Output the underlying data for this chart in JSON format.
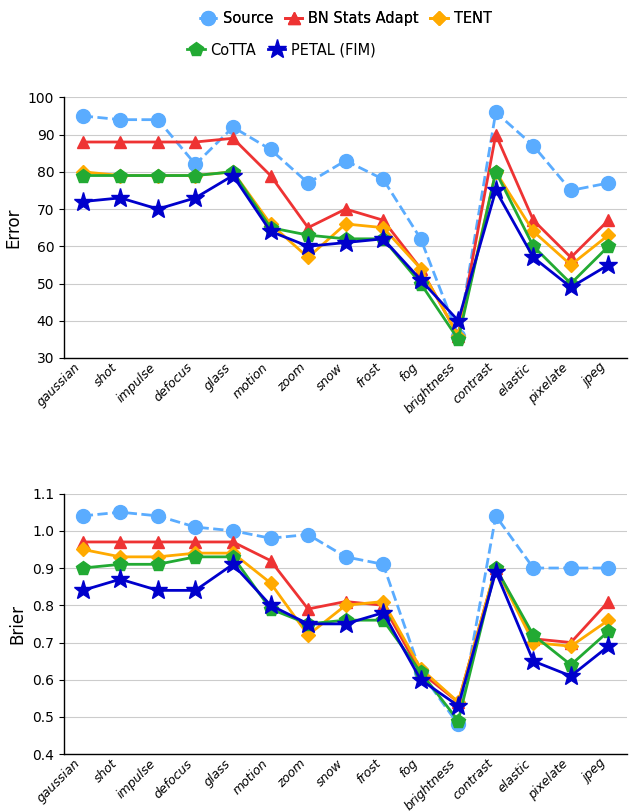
{
  "categories": [
    "gaussian",
    "shot",
    "impulse",
    "defocus",
    "glass",
    "motion",
    "zoom",
    "snow",
    "frost",
    "fog",
    "brightness",
    "contrast",
    "elastic",
    "pixelate",
    "jpeg"
  ],
  "error": {
    "Source": [
      95,
      94,
      94,
      82,
      92,
      86,
      77,
      83,
      78,
      62,
      36,
      96,
      87,
      75,
      77
    ],
    "BN Stats Adapt": [
      88,
      88,
      88,
      88,
      89,
      79,
      65,
      70,
      67,
      54,
      36,
      90,
      67,
      57,
      67
    ],
    "TENT": [
      80,
      79,
      79,
      79,
      80,
      66,
      57,
      66,
      65,
      54,
      36,
      80,
      64,
      55,
      63
    ],
    "CoTTA": [
      79,
      79,
      79,
      79,
      80,
      65,
      63,
      62,
      62,
      50,
      35,
      80,
      60,
      50,
      60
    ],
    "PETAL (FIM)": [
      72,
      73,
      70,
      73,
      79,
      64,
      60,
      61,
      62,
      51,
      40,
      75,
      57,
      49,
      55
    ]
  },
  "brier": {
    "Source": [
      1.04,
      1.05,
      1.04,
      1.01,
      1.0,
      0.98,
      0.99,
      0.93,
      0.91,
      0.62,
      0.48,
      1.04,
      0.9,
      0.9,
      0.9
    ],
    "BN Stats Adapt": [
      0.97,
      0.97,
      0.97,
      0.97,
      0.97,
      0.92,
      0.79,
      0.81,
      0.8,
      0.62,
      0.54,
      0.9,
      0.71,
      0.7,
      0.81
    ],
    "TENT": [
      0.95,
      0.93,
      0.93,
      0.94,
      0.94,
      0.86,
      0.72,
      0.8,
      0.81,
      0.63,
      0.54,
      0.9,
      0.7,
      0.69,
      0.76
    ],
    "CoTTA": [
      0.9,
      0.91,
      0.91,
      0.93,
      0.93,
      0.79,
      0.75,
      0.76,
      0.76,
      0.62,
      0.49,
      0.9,
      0.72,
      0.64,
      0.73
    ],
    "PETAL (FIM)": [
      0.84,
      0.87,
      0.84,
      0.84,
      0.91,
      0.8,
      0.75,
      0.75,
      0.78,
      0.6,
      0.53,
      0.89,
      0.65,
      0.61,
      0.69
    ]
  },
  "colors": {
    "Source": "#5aacff",
    "BN Stats Adapt": "#ee3333",
    "TENT": "#ffaa00",
    "CoTTA": "#22aa33",
    "PETAL (FIM)": "#0000cc"
  },
  "markers": {
    "Source": "o",
    "BN Stats Adapt": "^",
    "TENT": "D",
    "CoTTA": "p",
    "PETAL (FIM)": "*"
  },
  "linestyles": {
    "Source": "--",
    "BN Stats Adapt": "-",
    "TENT": "-",
    "CoTTA": "-",
    "PETAL (FIM)": "-"
  },
  "marker_sizes": {
    "Source": 10,
    "BN Stats Adapt": 9,
    "TENT": 7,
    "CoTTA": 10,
    "PETAL (FIM)": 14
  },
  "error_ylim": [
    30,
    100
  ],
  "brier_ylim": [
    0.4,
    1.1
  ],
  "error_yticks": [
    30,
    40,
    50,
    60,
    70,
    80,
    90,
    100
  ],
  "brier_yticks": [
    0.4,
    0.5,
    0.6,
    0.7,
    0.8,
    0.9,
    1.0,
    1.1
  ],
  "ylabel_error": "Error",
  "ylabel_brier": "Brier",
  "linewidth": 2.0,
  "grid_color": "#cccccc",
  "legend_row1": [
    "Source",
    "BN Stats Adapt",
    "TENT"
  ],
  "legend_row2": [
    "CoTTA",
    "PETAL (FIM)"
  ]
}
